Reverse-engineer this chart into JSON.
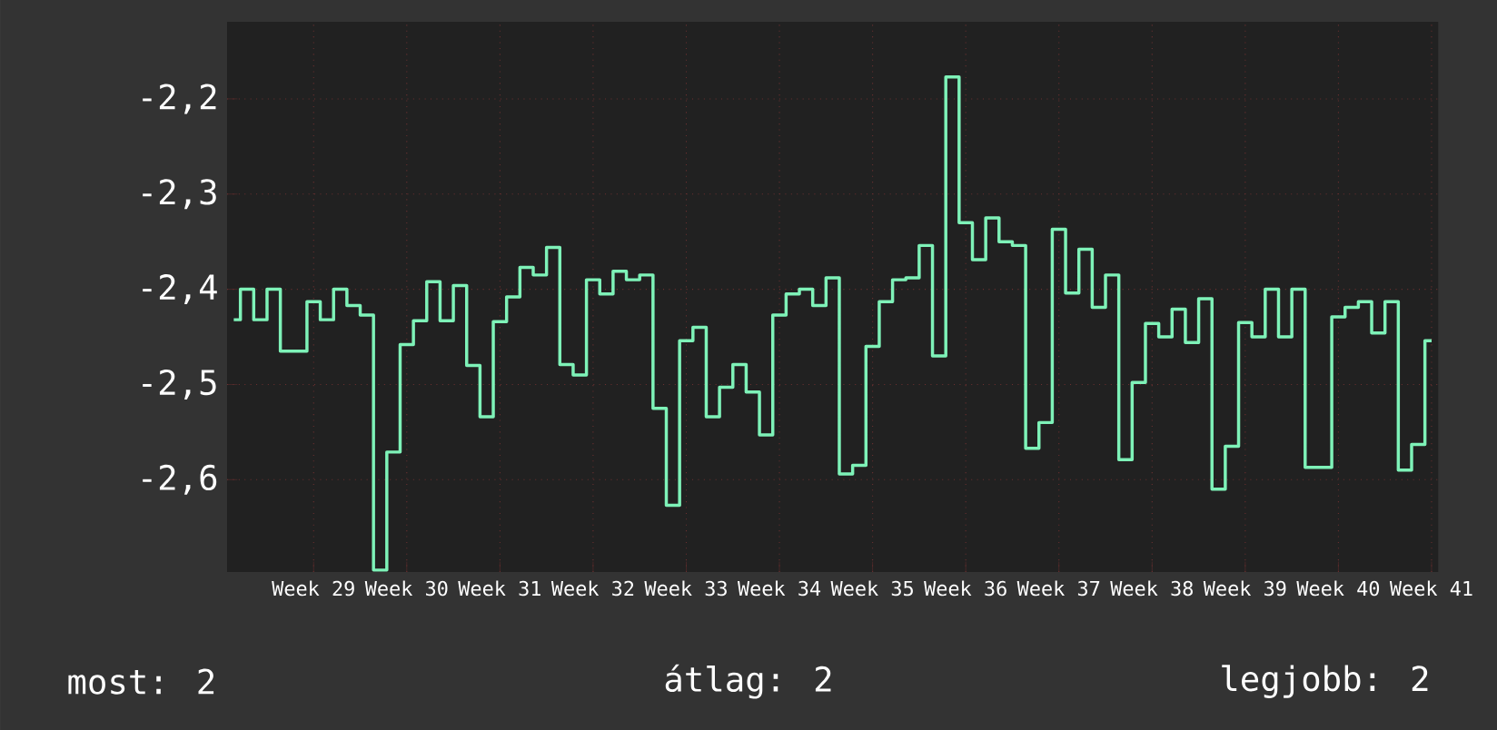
{
  "chart_data": {
    "type": "step",
    "color": "#7ef2b8",
    "grid": true,
    "categories": [
      null,
      null,
      null,
      null,
      null,
      null,
      "Week 29",
      null,
      null,
      null,
      null,
      null,
      null,
      "Week 30",
      null,
      null,
      null,
      null,
      null,
      null,
      "Week 31",
      null,
      null,
      null,
      null,
      null,
      null,
      "Week 32",
      null,
      null,
      null,
      null,
      null,
      null,
      "Week 33",
      null,
      null,
      null,
      null,
      null,
      null,
      "Week 34",
      null,
      null,
      null,
      null,
      null,
      null,
      "Week 35",
      null,
      null,
      null,
      null,
      null,
      null,
      "Week 36",
      null,
      null,
      null,
      null,
      null,
      null,
      "Week 37",
      null,
      null,
      null,
      null,
      null,
      null,
      "Week 38",
      null,
      null,
      null,
      null,
      null,
      null,
      "Week 39",
      null,
      null,
      null,
      null,
      null,
      null,
      "Week 40",
      null,
      null,
      null,
      null,
      null,
      null,
      "Week 41"
    ],
    "values": [
      -2.432,
      -2.4,
      -2.432,
      -2.4,
      -2.465,
      -2.465,
      -2.413,
      -2.432,
      -2.4,
      -2.417,
      -2.427,
      -2.695,
      -2.571,
      -2.458,
      -2.433,
      -2.392,
      -2.433,
      -2.396,
      -2.48,
      -2.534,
      -2.434,
      -2.408,
      -2.377,
      -2.385,
      -2.356,
      -2.479,
      -2.49,
      -2.39,
      -2.405,
      -2.381,
      -2.39,
      -2.385,
      -2.525,
      -2.627,
      -2.454,
      -2.44,
      -2.534,
      -2.503,
      -2.479,
      -2.508,
      -2.553,
      -2.427,
      -2.405,
      -2.4,
      -2.417,
      -2.388,
      -2.594,
      -2.585,
      -2.46,
      -2.413,
      -2.39,
      -2.388,
      -2.354,
      -2.47,
      -2.177,
      -2.33,
      -2.369,
      -2.325,
      -2.35,
      -2.354,
      -2.567,
      -2.54,
      -2.337,
      -2.404,
      -2.358,
      -2.419,
      -2.385,
      -2.579,
      -2.498,
      -2.436,
      -2.45,
      -2.421,
      -2.456,
      -2.41,
      -2.61,
      -2.565,
      -2.435,
      -2.45,
      -2.4,
      -2.45,
      -2.4,
      -2.587,
      -2.587,
      -2.429,
      -2.419,
      -2.413,
      -2.446,
      -2.413,
      -2.59,
      -2.563,
      -2.454
    ],
    "ylim": [
      -2.697,
      -2.119
    ],
    "yticks": [
      {
        "value": -2.6,
        "label": "-2,6"
      },
      {
        "value": -2.5,
        "label": "-2,5"
      },
      {
        "value": -2.4,
        "label": "-2,4"
      },
      {
        "value": -2.3,
        "label": "-2,3"
      },
      {
        "value": -2.2,
        "label": "-2,2"
      }
    ],
    "annotations": [
      "most: 2",
      "átlag: 2",
      "legjobb: 2"
    ]
  }
}
